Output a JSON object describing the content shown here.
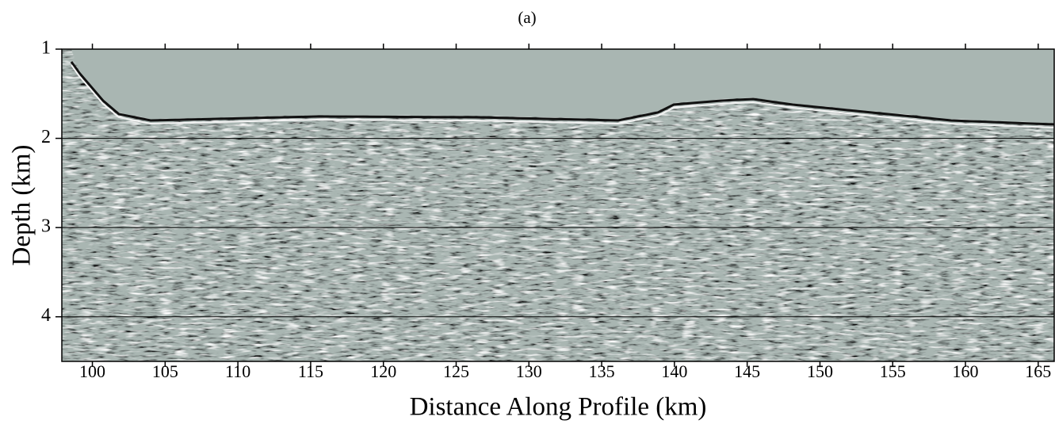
{
  "chart_data": {
    "type": "image",
    "title": "(a)",
    "x_label": "Distance Along Profile (km)",
    "y_label": "Depth (km)",
    "xlim": [
      97.9,
      166.1
    ],
    "ylim": [
      1,
      4.5
    ],
    "xticks": [
      100,
      105,
      110,
      115,
      120,
      125,
      130,
      135,
      140,
      145,
      150,
      155,
      160,
      165
    ],
    "yticks": [
      1,
      2,
      3,
      4
    ],
    "y_inverted": true,
    "grid": true
  }
}
